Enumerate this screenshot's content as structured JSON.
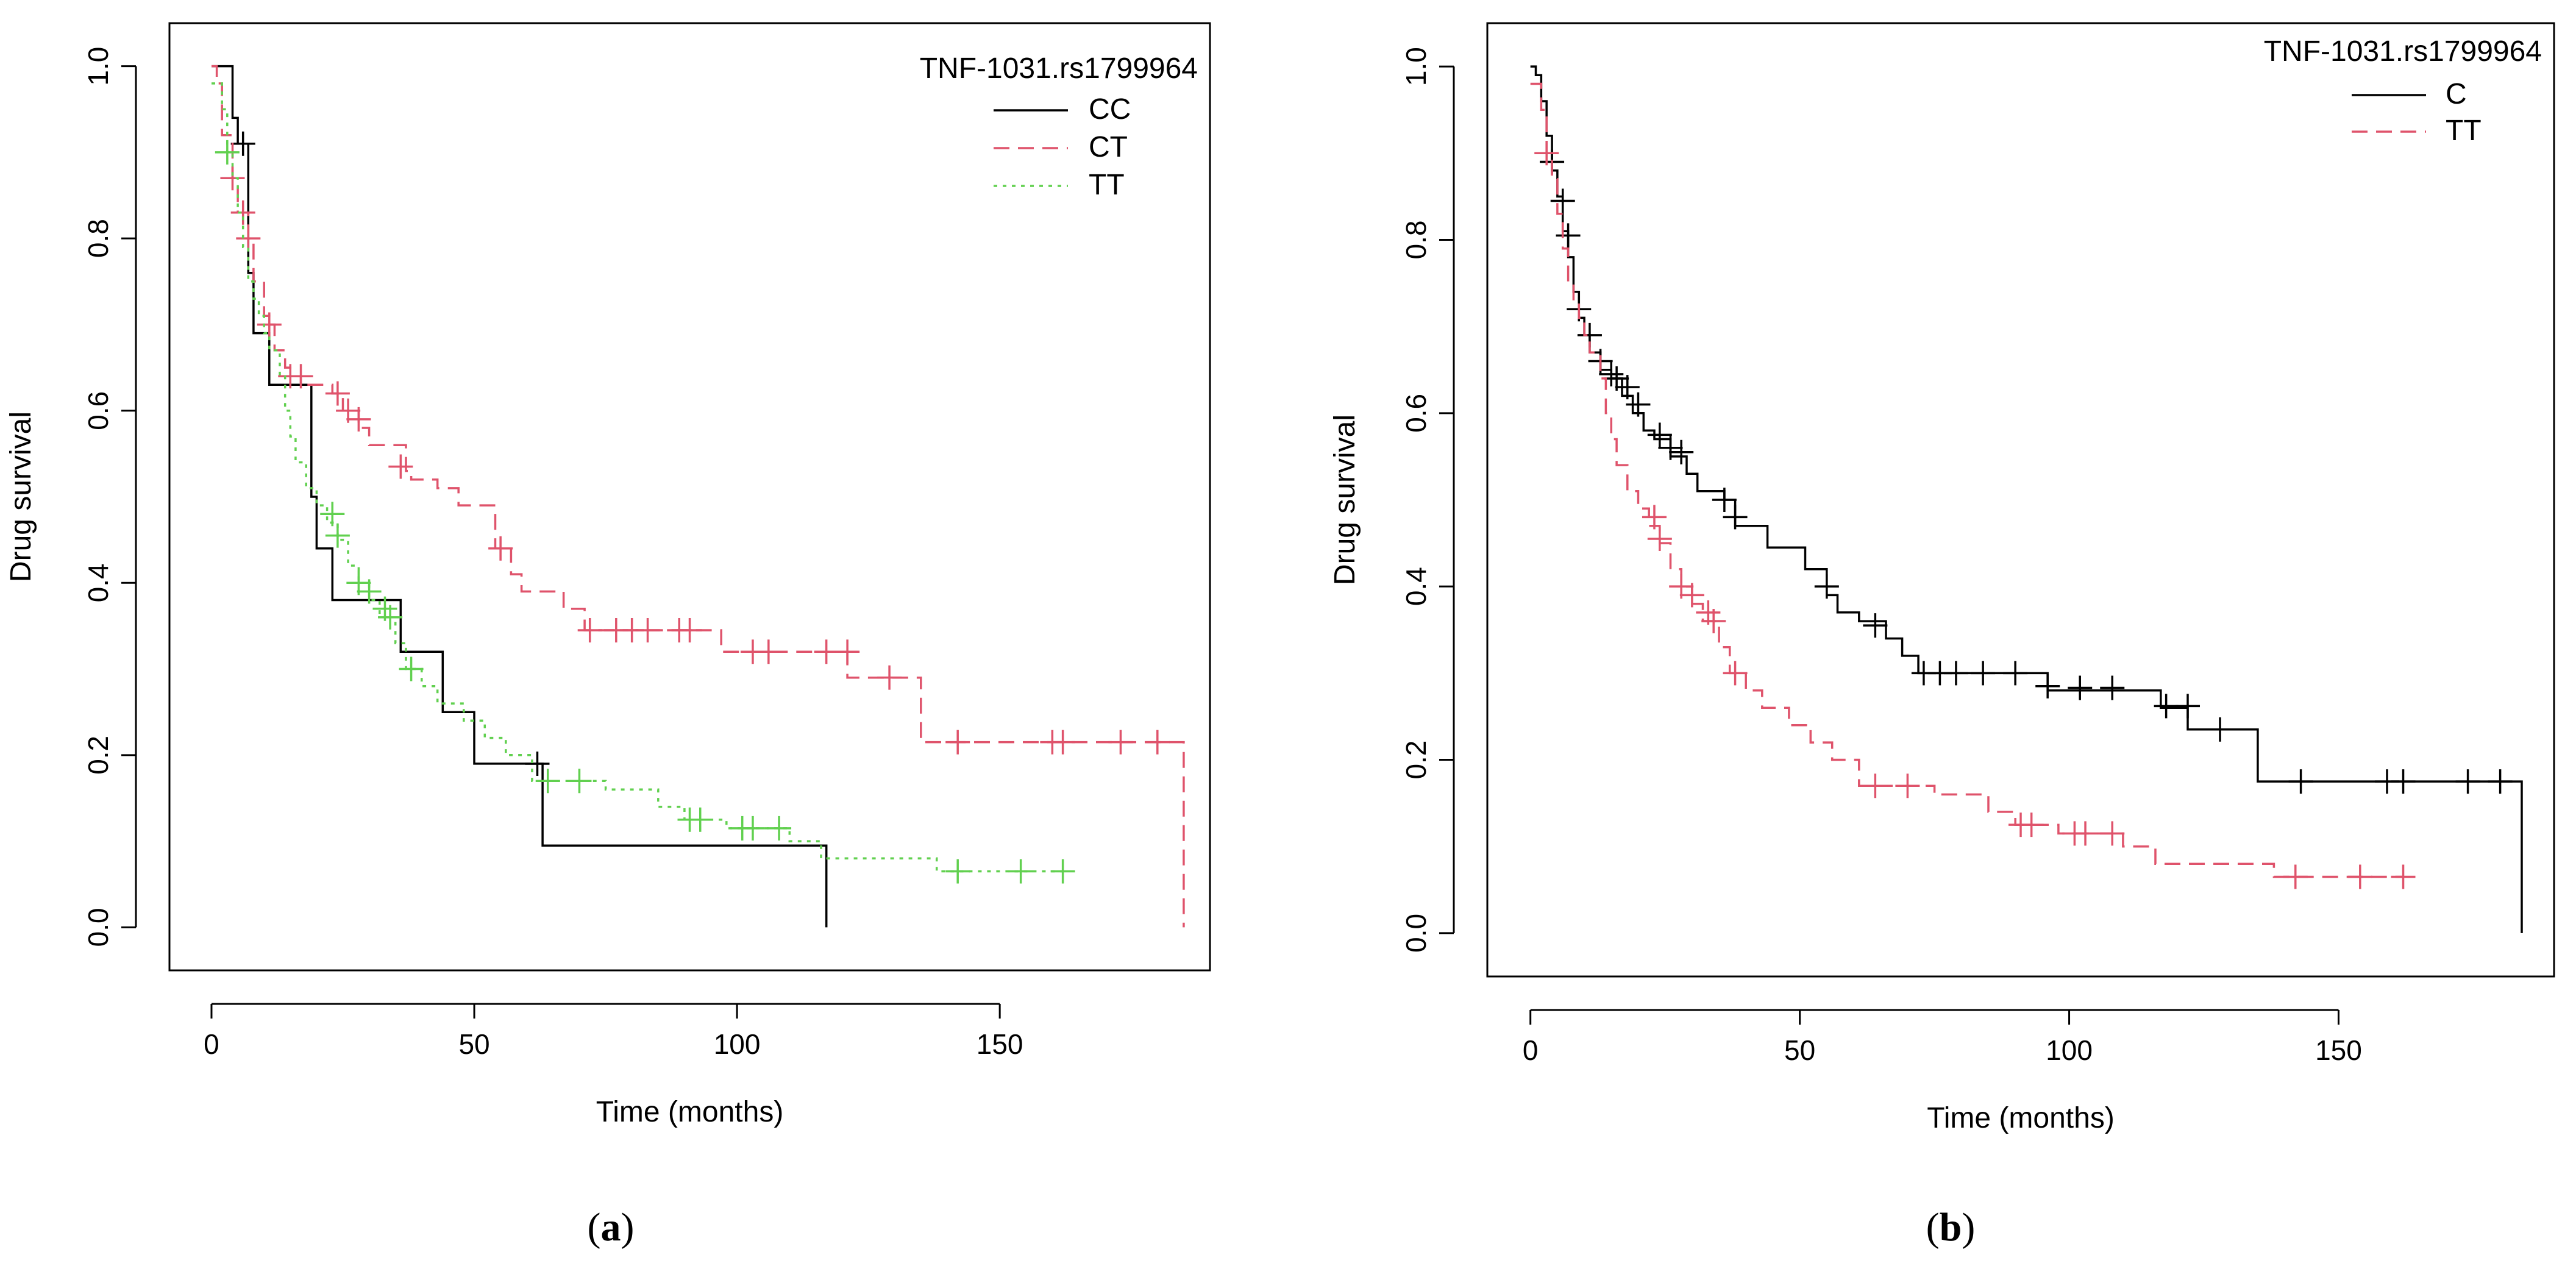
{
  "chart_data": [
    {
      "type": "line",
      "subtype": "kaplan-meier",
      "panel_label": "a",
      "panel_open": "(",
      "panel_close": ")",
      "xlabel": "Time (months)",
      "ylabel": "Drug survival",
      "xlim": [
        -8,
        190
      ],
      "ylim": [
        -0.05,
        1.05
      ],
      "xticks": [
        0,
        50,
        100,
        150
      ],
      "yticks": [
        0.0,
        0.2,
        0.4,
        0.6,
        0.8,
        1.0
      ],
      "xtick_labels": [
        "0",
        "50",
        "100",
        "150"
      ],
      "ytick_labels": [
        "0.0",
        "0.2",
        "0.4",
        "0.6",
        "0.8",
        "1.0"
      ],
      "legend": {
        "title": "TNF-1031.rs1799964",
        "position": "top-right",
        "entries": [
          "CC",
          "CT",
          "TT"
        ]
      },
      "series": [
        {
          "name": "CC",
          "color": "#000000",
          "dash": "solid",
          "steps": [
            [
              0,
              1.0
            ],
            [
              4,
              0.94
            ],
            [
              5,
              0.91
            ],
            [
              7,
              0.76
            ],
            [
              8,
              0.69
            ],
            [
              11,
              0.63
            ],
            [
              19,
              0.5
            ],
            [
              20,
              0.44
            ],
            [
              23,
              0.38
            ],
            [
              36,
              0.32
            ],
            [
              44,
              0.25
            ],
            [
              50,
              0.19
            ],
            [
              63,
              0.095
            ],
            [
              117,
              0.0
            ]
          ],
          "censored": [
            [
              6,
              0.91
            ],
            [
              62,
              0.19
            ]
          ]
        },
        {
          "name": "CT",
          "color": "#DF536B",
          "dash": "dashed",
          "steps": [
            [
              0,
              1.0
            ],
            [
              1,
              0.98
            ],
            [
              2,
              0.92
            ],
            [
              4,
              0.87
            ],
            [
              5,
              0.83
            ],
            [
              7,
              0.8
            ],
            [
              8,
              0.75
            ],
            [
              10,
              0.71
            ],
            [
              11,
              0.7
            ],
            [
              12,
              0.67
            ],
            [
              14,
              0.65
            ],
            [
              15,
              0.64
            ],
            [
              17,
              0.63
            ],
            [
              23,
              0.62
            ],
            [
              25,
              0.6
            ],
            [
              28,
              0.58
            ],
            [
              30,
              0.56
            ],
            [
              37,
              0.53
            ],
            [
              38,
              0.52
            ],
            [
              43,
              0.51
            ],
            [
              47,
              0.49
            ],
            [
              54,
              0.44
            ],
            [
              57,
              0.41
            ],
            [
              59,
              0.39
            ],
            [
              67,
              0.37
            ],
            [
              71,
              0.345
            ],
            [
              97,
              0.32
            ],
            [
              121,
              0.29
            ],
            [
              135,
              0.215
            ],
            [
              185,
              0.0
            ]
          ],
          "censored": [
            [
              4,
              0.87
            ],
            [
              6,
              0.83
            ],
            [
              7,
              0.8
            ],
            [
              11,
              0.7
            ],
            [
              15,
              0.64
            ],
            [
              17,
              0.64
            ],
            [
              24,
              0.62
            ],
            [
              26,
              0.6
            ],
            [
              28,
              0.59
            ],
            [
              36,
              0.535
            ],
            [
              55,
              0.44
            ],
            [
              72,
              0.345
            ],
            [
              77,
              0.345
            ],
            [
              80,
              0.345
            ],
            [
              83,
              0.345
            ],
            [
              89,
              0.345
            ],
            [
              91,
              0.345
            ],
            [
              103,
              0.32
            ],
            [
              106,
              0.32
            ],
            [
              117,
              0.32
            ],
            [
              121,
              0.32
            ],
            [
              129,
              0.29
            ],
            [
              142,
              0.215
            ],
            [
              160,
              0.215
            ],
            [
              162,
              0.215
            ],
            [
              173,
              0.215
            ],
            [
              180,
              0.215
            ]
          ]
        },
        {
          "name": "TT",
          "color": "#61D04F",
          "dash": "dotted",
          "steps": [
            [
              0,
              0.98
            ],
            [
              2,
              0.95
            ],
            [
              3,
              0.9
            ],
            [
              4,
              0.87
            ],
            [
              5,
              0.83
            ],
            [
              6,
              0.79
            ],
            [
              7,
              0.75
            ],
            [
              8,
              0.73
            ],
            [
              9,
              0.71
            ],
            [
              10,
              0.69
            ],
            [
              11,
              0.67
            ],
            [
              13,
              0.64
            ],
            [
              14,
              0.6
            ],
            [
              15,
              0.57
            ],
            [
              16,
              0.54
            ],
            [
              18,
              0.51
            ],
            [
              20,
              0.49
            ],
            [
              22,
              0.47
            ],
            [
              24,
              0.45
            ],
            [
              26,
              0.42
            ],
            [
              28,
              0.4
            ],
            [
              30,
              0.38
            ],
            [
              32,
              0.36
            ],
            [
              35,
              0.33
            ],
            [
              37,
              0.3
            ],
            [
              40,
              0.28
            ],
            [
              43,
              0.26
            ],
            [
              48,
              0.24
            ],
            [
              52,
              0.22
            ],
            [
              56,
              0.2
            ],
            [
              61,
              0.17
            ],
            [
              75,
              0.16
            ],
            [
              85,
              0.14
            ],
            [
              90,
              0.125
            ],
            [
              98,
              0.115
            ],
            [
              110,
              0.1
            ],
            [
              116,
              0.08
            ],
            [
              138,
              0.065
            ],
            [
              162,
              0.065
            ]
          ],
          "censored": [
            [
              3,
              0.9
            ],
            [
              23,
              0.48
            ],
            [
              24,
              0.455
            ],
            [
              28,
              0.4
            ],
            [
              30,
              0.39
            ],
            [
              33,
              0.37
            ],
            [
              34,
              0.36
            ],
            [
              38,
              0.3
            ],
            [
              64,
              0.17
            ],
            [
              70,
              0.17
            ],
            [
              91,
              0.125
            ],
            [
              93,
              0.125
            ],
            [
              101,
              0.115
            ],
            [
              103,
              0.115
            ],
            [
              108,
              0.115
            ],
            [
              142,
              0.065
            ],
            [
              154,
              0.065
            ],
            [
              162,
              0.065
            ]
          ]
        }
      ]
    },
    {
      "type": "line",
      "subtype": "kaplan-meier",
      "panel_label": "b",
      "panel_open": "(",
      "panel_close": ")",
      "xlabel": "Time (months)",
      "ylabel": "Drug survival",
      "xlim": [
        -8,
        190
      ],
      "ylim": [
        -0.05,
        1.05
      ],
      "xticks": [
        0,
        50,
        100,
        150
      ],
      "yticks": [
        0.0,
        0.2,
        0.4,
        0.6,
        0.8,
        1.0
      ],
      "xtick_labels": [
        "0",
        "50",
        "100",
        "150"
      ],
      "ytick_labels": [
        "0.0",
        "0.2",
        "0.4",
        "0.6",
        "0.8",
        "1.0"
      ],
      "legend": {
        "title": "TNF-1031.rs1799964",
        "position": "top-right",
        "entries": [
          "C",
          "TT"
        ]
      },
      "series": [
        {
          "name": "C",
          "color": "#000000",
          "dash": "solid",
          "steps": [
            [
              0,
              1.0
            ],
            [
              1,
              0.99
            ],
            [
              2,
              0.96
            ],
            [
              3,
              0.92
            ],
            [
              4,
              0.88
            ],
            [
              5,
              0.85
            ],
            [
              6,
              0.81
            ],
            [
              7,
              0.78
            ],
            [
              8,
              0.74
            ],
            [
              9,
              0.71
            ],
            [
              10,
              0.69
            ],
            [
              11,
              0.67
            ],
            [
              13,
              0.65
            ],
            [
              15,
              0.64
            ],
            [
              17,
              0.62
            ],
            [
              19,
              0.6
            ],
            [
              21,
              0.58
            ],
            [
              23,
              0.57
            ],
            [
              26,
              0.55
            ],
            [
              29,
              0.53
            ],
            [
              31,
              0.51
            ],
            [
              36,
              0.5
            ],
            [
              38,
              0.47
            ],
            [
              44,
              0.445
            ],
            [
              51,
              0.42
            ],
            [
              55,
              0.39
            ],
            [
              57,
              0.37
            ],
            [
              61,
              0.36
            ],
            [
              66,
              0.34
            ],
            [
              69,
              0.32
            ],
            [
              72,
              0.3
            ],
            [
              96,
              0.28
            ],
            [
              117,
              0.26
            ],
            [
              122,
              0.235
            ],
            [
              135,
              0.175
            ],
            [
              184,
              0.0
            ]
          ],
          "censored": [
            [
              4,
              0.89
            ],
            [
              6,
              0.845
            ],
            [
              7,
              0.805
            ],
            [
              9,
              0.72
            ],
            [
              11,
              0.69
            ],
            [
              13,
              0.66
            ],
            [
              15,
              0.645
            ],
            [
              16,
              0.64
            ],
            [
              18,
              0.63
            ],
            [
              20,
              0.61
            ],
            [
              24,
              0.575
            ],
            [
              26,
              0.56
            ],
            [
              28,
              0.555
            ],
            [
              36,
              0.5
            ],
            [
              38,
              0.48
            ],
            [
              55,
              0.4
            ],
            [
              64,
              0.355
            ],
            [
              73,
              0.3
            ],
            [
              76,
              0.3
            ],
            [
              79,
              0.3
            ],
            [
              84,
              0.3
            ],
            [
              90,
              0.3
            ],
            [
              96,
              0.285
            ],
            [
              102,
              0.283
            ],
            [
              108,
              0.283
            ],
            [
              118,
              0.262
            ],
            [
              122,
              0.262
            ],
            [
              128,
              0.235
            ],
            [
              143,
              0.175
            ],
            [
              159,
              0.175
            ],
            [
              162,
              0.175
            ],
            [
              174,
              0.175
            ],
            [
              180,
              0.175
            ]
          ]
        },
        {
          "name": "TT",
          "color": "#DF536B",
          "dash": "dashed",
          "steps": [
            [
              0,
              0.98
            ],
            [
              2,
              0.95
            ],
            [
              3,
              0.9
            ],
            [
              4,
              0.87
            ],
            [
              5,
              0.83
            ],
            [
              6,
              0.79
            ],
            [
              7,
              0.75
            ],
            [
              8,
              0.73
            ],
            [
              9,
              0.71
            ],
            [
              10,
              0.69
            ],
            [
              11,
              0.67
            ],
            [
              13,
              0.64
            ],
            [
              14,
              0.6
            ],
            [
              15,
              0.57
            ],
            [
              16,
              0.54
            ],
            [
              18,
              0.51
            ],
            [
              20,
              0.49
            ],
            [
              22,
              0.47
            ],
            [
              24,
              0.45
            ],
            [
              26,
              0.42
            ],
            [
              28,
              0.4
            ],
            [
              30,
              0.38
            ],
            [
              32,
              0.36
            ],
            [
              35,
              0.33
            ],
            [
              37,
              0.3
            ],
            [
              40,
              0.28
            ],
            [
              43,
              0.26
            ],
            [
              48,
              0.24
            ],
            [
              52,
              0.22
            ],
            [
              56,
              0.2
            ],
            [
              61,
              0.17
            ],
            [
              75,
              0.16
            ],
            [
              85,
              0.14
            ],
            [
              90,
              0.125
            ],
            [
              98,
              0.115
            ],
            [
              110,
              0.1
            ],
            [
              116,
              0.08
            ],
            [
              138,
              0.065
            ],
            [
              162,
              0.065
            ]
          ],
          "censored": [
            [
              3,
              0.9
            ],
            [
              23,
              0.48
            ],
            [
              24,
              0.455
            ],
            [
              28,
              0.4
            ],
            [
              30,
              0.39
            ],
            [
              33,
              0.37
            ],
            [
              34,
              0.36
            ],
            [
              38,
              0.3
            ],
            [
              64,
              0.17
            ],
            [
              70,
              0.17
            ],
            [
              91,
              0.125
            ],
            [
              93,
              0.125
            ],
            [
              101,
              0.115
            ],
            [
              103,
              0.115
            ],
            [
              108,
              0.115
            ],
            [
              142,
              0.065
            ],
            [
              154,
              0.065
            ],
            [
              162,
              0.065
            ]
          ]
        }
      ]
    }
  ]
}
